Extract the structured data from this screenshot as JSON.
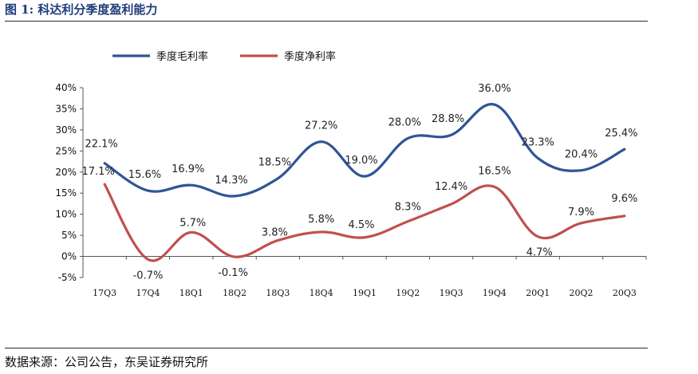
{
  "figure": {
    "title": "图 1:  科达利分季度盈利能力",
    "source": "数据来源：公司公告，东吴证券研究所"
  },
  "chart_data": {
    "type": "line",
    "categories": [
      "17Q3",
      "17Q4",
      "18Q1",
      "18Q2",
      "18Q3",
      "18Q4",
      "19Q1",
      "19Q2",
      "19Q3",
      "19Q4",
      "20Q1",
      "20Q2",
      "20Q3"
    ],
    "series": [
      {
        "name": "季度毛利率",
        "color": "#2f5596",
        "values": [
          22.1,
          15.6,
          16.9,
          14.3,
          18.5,
          27.2,
          19.0,
          28.0,
          28.8,
          36.0,
          23.3,
          20.4,
          25.4
        ],
        "labels": [
          "22.1%",
          "15.6%",
          "16.9%",
          "14.3%",
          "18.5%",
          "27.2%",
          "19.0%",
          "28.0%",
          "28.8%",
          "36.0%",
          "23.3%",
          "20.4%",
          "25.4%"
        ]
      },
      {
        "name": "季度净利率",
        "color": "#c0504d",
        "values": [
          17.1,
          -0.7,
          5.7,
          -0.1,
          3.8,
          5.8,
          4.5,
          8.3,
          12.4,
          16.5,
          4.7,
          7.9,
          9.6
        ],
        "labels": [
          "17.1%",
          "-0.7%",
          "5.7%",
          "-0.1%",
          "3.8%",
          "5.8%",
          "4.5%",
          "8.3%",
          "12.4%",
          "16.5%",
          "4.7%",
          "7.9%",
          "9.6%"
        ]
      }
    ],
    "yticks": [
      "40%",
      "35%",
      "30%",
      "25%",
      "20%",
      "15%",
      "10%",
      "5%",
      "0%",
      "-5%"
    ],
    "ylim": [
      -5,
      40
    ],
    "grid": false,
    "legend": "top-left"
  }
}
